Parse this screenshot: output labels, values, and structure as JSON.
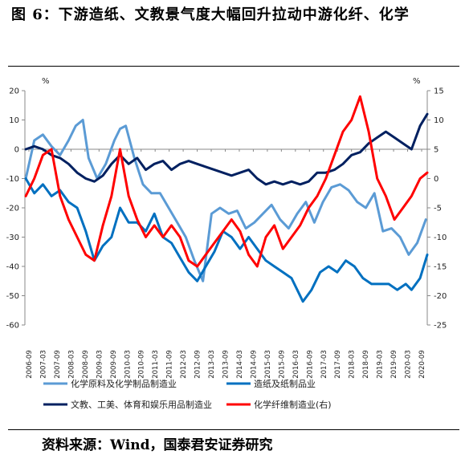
{
  "figure": {
    "title": "图 6：下游造纸、文教景气度大幅回升拉动中游化纤、化学",
    "source": "资料来源：Wind，国泰君安证券研究"
  },
  "chart_data": {
    "type": "line",
    "left_unit": "%",
    "right_unit": "%",
    "left_ylim": [
      -60,
      20
    ],
    "left_ticks": [
      20,
      10,
      0,
      -10,
      -20,
      -30,
      -40,
      -50,
      -60
    ],
    "right_ylim": [
      -25,
      15
    ],
    "right_ticks": [
      15,
      10,
      5,
      0,
      -5,
      -10,
      -15,
      -20,
      -25
    ],
    "x_tick_labels": [
      "2006-09",
      "2007-03",
      "2007-09",
      "2008-03",
      "2008-09",
      "2009-03",
      "2009-09",
      "2010-03",
      "2010-09",
      "2011-03",
      "2011-09",
      "2012-03",
      "2012-09",
      "2013-03",
      "2013-09",
      "2014-03",
      "2014-09",
      "2015-03",
      "2015-09",
      "2016-03",
      "2016-09",
      "2017-03",
      "2017-09",
      "2018-03",
      "2018-09",
      "2019-03",
      "2019-09",
      "2020-03",
      "2020-09"
    ],
    "series": [
      {
        "name": "化学原料及化学制品制造业",
        "axis": "left",
        "color": "#5b9bd5",
        "x": [
          2006.7,
          2007.0,
          2007.3,
          2007.6,
          2007.9,
          2008.2,
          2008.45,
          2008.7,
          2008.9,
          2009.2,
          2009.5,
          2009.8,
          2010.0,
          2010.2,
          2010.5,
          2010.8,
          2011.1,
          2011.4,
          2011.7,
          2012.0,
          2012.3,
          2012.6,
          2012.9,
          2013.2,
          2013.5,
          2013.8,
          2014.1,
          2014.4,
          2014.7,
          2015.0,
          2015.3,
          2015.6,
          2015.9,
          2016.2,
          2016.5,
          2016.8,
          2017.1,
          2017.4,
          2017.7,
          2018.0,
          2018.3,
          2018.6,
          2018.9,
          2019.2,
          2019.5,
          2019.8,
          2020.1,
          2020.4,
          2020.7
        ],
        "y": [
          -10,
          3,
          5,
          1,
          -2,
          3,
          8,
          10,
          -3,
          -10,
          -5,
          3,
          7,
          8,
          -3,
          -12,
          -15,
          -15,
          -20,
          -25,
          -30,
          -38,
          -45,
          -22,
          -20,
          -22,
          -21,
          -27,
          -25,
          -22,
          -19,
          -24,
          -27,
          -22,
          -18,
          -25,
          -18,
          -13,
          -12,
          -14,
          -18,
          -20,
          -15,
          -28,
          -27,
          -30,
          -36,
          -32,
          -24
        ]
      },
      {
        "name": "造纸及纸制品业",
        "axis": "left",
        "color": "#0070c0",
        "x": [
          2006.7,
          2007.0,
          2007.3,
          2007.6,
          2007.9,
          2008.2,
          2008.5,
          2008.8,
          2009.1,
          2009.4,
          2009.7,
          2010.0,
          2010.3,
          2010.6,
          2010.9,
          2011.2,
          2011.5,
          2011.8,
          2012.1,
          2012.4,
          2012.7,
          2013.0,
          2013.3,
          2013.6,
          2013.9,
          2014.2,
          2014.5,
          2014.8,
          2015.1,
          2015.4,
          2015.7,
          2016.0,
          2016.2,
          2016.4,
          2016.7,
          2017.0,
          2017.3,
          2017.6,
          2017.9,
          2018.2,
          2018.5,
          2018.8,
          2019.1,
          2019.4,
          2019.7,
          2020.0,
          2020.2,
          2020.5,
          2020.75
        ],
        "y": [
          -10,
          -15,
          -12,
          -16,
          -14,
          -18,
          -20,
          -28,
          -38,
          -33,
          -30,
          -20,
          -25,
          -25,
          -28,
          -22,
          -30,
          -32,
          -37,
          -42,
          -45,
          -40,
          -35,
          -28,
          -30,
          -34,
          -30,
          -34,
          -38,
          -40,
          -42,
          -44,
          -48,
          -52,
          -48,
          -42,
          -40,
          -42,
          -38,
          -40,
          -44,
          -46,
          -46,
          -46,
          -48,
          -46,
          -48,
          -44,
          -36
        ]
      },
      {
        "name": "文教、工美、体育和娱乐用品制造业",
        "axis": "left",
        "color": "#002060",
        "x": [
          2006.7,
          2007.0,
          2007.3,
          2007.6,
          2007.9,
          2008.2,
          2008.5,
          2008.8,
          2009.1,
          2009.4,
          2009.7,
          2010.0,
          2010.3,
          2010.6,
          2010.9,
          2011.2,
          2011.5,
          2011.8,
          2012.1,
          2012.4,
          2012.7,
          2013.0,
          2013.3,
          2013.6,
          2013.9,
          2014.2,
          2014.5,
          2014.8,
          2015.1,
          2015.4,
          2015.7,
          2016.0,
          2016.3,
          2016.6,
          2016.9,
          2017.2,
          2017.5,
          2017.8,
          2018.1,
          2018.4,
          2018.7,
          2019.0,
          2019.3,
          2019.6,
          2019.9,
          2020.2,
          2020.5,
          2020.75
        ],
        "y": [
          0,
          1,
          0,
          -2,
          -3,
          -5,
          -8,
          -10,
          -11,
          -9,
          -5,
          -2,
          -5,
          -3,
          -7,
          -5,
          -4,
          -7,
          -5,
          -4,
          -5,
          -6,
          -7,
          -8,
          -9,
          -8,
          -7,
          -10,
          -12,
          -11,
          -12,
          -11,
          -12,
          -11,
          -8,
          -8,
          -7,
          -5,
          -2,
          -1,
          2,
          4,
          6,
          4,
          2,
          0,
          8,
          12
        ]
      },
      {
        "name": "化学纤维制造业(右)",
        "axis": "right",
        "color": "#ff0000",
        "x": [
          2006.7,
          2007.0,
          2007.3,
          2007.6,
          2007.9,
          2008.2,
          2008.5,
          2008.8,
          2009.1,
          2009.4,
          2009.7,
          2010.0,
          2010.3,
          2010.6,
          2010.9,
          2011.2,
          2011.5,
          2011.8,
          2012.1,
          2012.4,
          2012.7,
          2013.0,
          2013.3,
          2013.6,
          2013.9,
          2014.2,
          2014.5,
          2014.8,
          2015.1,
          2015.4,
          2015.7,
          2016.0,
          2016.3,
          2016.6,
          2016.9,
          2017.2,
          2017.5,
          2017.8,
          2018.1,
          2018.4,
          2018.7,
          2019.0,
          2019.3,
          2019.6,
          2019.9,
          2020.2,
          2020.5,
          2020.75
        ],
        "y": [
          -3,
          0,
          4,
          5,
          -3,
          -7,
          -10,
          -13,
          -14,
          -8,
          -3,
          5,
          -3,
          -7,
          -10,
          -8,
          -10,
          -8,
          -10,
          -14,
          -15,
          -13,
          -11,
          -9,
          -7,
          -9,
          -13,
          -15,
          -10,
          -8,
          -12,
          -10,
          -8,
          -5,
          -3,
          0,
          4,
          8,
          10,
          14,
          8,
          0,
          -3,
          -7,
          -5,
          -3,
          0,
          1
        ]
      }
    ]
  }
}
